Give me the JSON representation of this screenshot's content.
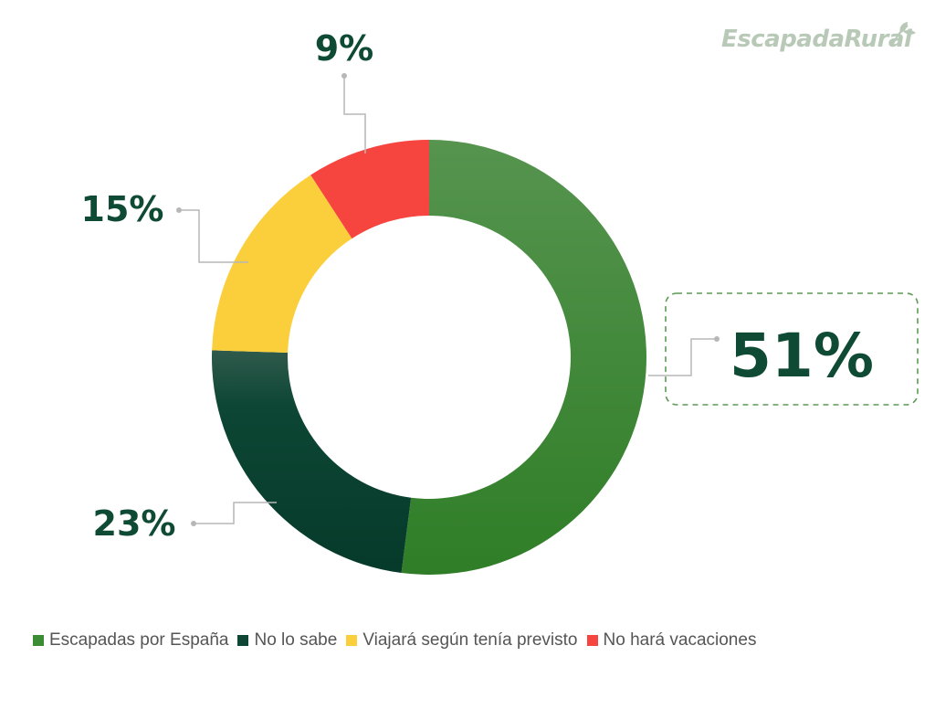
{
  "brand": {
    "logo_text": "EscapadaRural",
    "logo_color": "#b9c9b8"
  },
  "chart_data": {
    "type": "pie",
    "variant": "donut",
    "categories": [
      "Escapadas por España",
      "No lo sabe",
      "Viajará según tenía previsto",
      "No hará vacaciones"
    ],
    "values": [
      51,
      23,
      15,
      9
    ],
    "data_labels": [
      "51%",
      "23%",
      "15%",
      "9%"
    ],
    "colors": [
      "#3c8c33",
      "#0d4634",
      "#fbcf3b",
      "#f5453e"
    ],
    "legend_position": "bottom",
    "highlight": "Escapadas por España"
  }
}
